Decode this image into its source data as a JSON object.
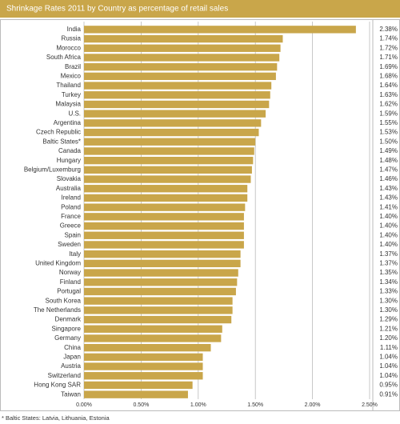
{
  "chart_data": {
    "type": "bar",
    "orientation": "horizontal",
    "title": "Shrinkage Rates 2011 by Country as percentage of retail sales",
    "categories": [
      "India",
      "Russia",
      "Morocco",
      "South Africa",
      "Brazil",
      "Mexico",
      "Thailand",
      "Turkey",
      "Malaysia",
      "U.S.",
      "Argentina",
      "Czech Republic",
      "Baltic States*",
      "Canada",
      "Hungary",
      "Belgium/Luxemburg",
      "Slovakia",
      "Australia",
      "Ireland",
      "Poland",
      "France",
      "Greece",
      "Spain",
      "Sweden",
      "Italy",
      "United Kingdom",
      "Norway",
      "Finland",
      "Portugal",
      "South Korea",
      "The Netherlands",
      "Denmark",
      "Singapore",
      "Germany",
      "China",
      "Japan",
      "Austria",
      "Switzerland",
      "Hong Kong SAR",
      "Taiwan"
    ],
    "values": [
      2.38,
      1.74,
      1.72,
      1.71,
      1.69,
      1.68,
      1.64,
      1.63,
      1.62,
      1.59,
      1.55,
      1.53,
      1.5,
      1.49,
      1.48,
      1.47,
      1.46,
      1.43,
      1.43,
      1.41,
      1.4,
      1.4,
      1.4,
      1.4,
      1.37,
      1.37,
      1.35,
      1.34,
      1.33,
      1.3,
      1.3,
      1.29,
      1.21,
      1.2,
      1.11,
      1.04,
      1.04,
      1.04,
      0.95,
      0.91
    ],
    "value_labels": [
      "2.38%",
      "1.74%",
      "1.72%",
      "1.71%",
      "1.69%",
      "1.68%",
      "1.64%",
      "1.63%",
      "1.62%",
      "1.59%",
      "1.55%",
      "1.53%",
      "1.50%",
      "1.49%",
      "1.48%",
      "1.47%",
      "1.46%",
      "1.43%",
      "1.43%",
      "1.41%",
      "1.40%",
      "1.40%",
      "1.40%",
      "1.40%",
      "1.37%",
      "1.37%",
      "1.35%",
      "1.34%",
      "1.33%",
      "1.30%",
      "1.30%",
      "1.29%",
      "1.21%",
      "1.20%",
      "1.11%",
      "1.04%",
      "1.04%",
      "1.04%",
      "0.95%",
      "0.91%"
    ],
    "color": "#c9a64a",
    "xlim": [
      0,
      2.5
    ],
    "xticks": [
      {
        "value": 0,
        "label": "0.00%"
      },
      {
        "value": 0.5,
        "label": "0.50%"
      },
      {
        "value": 1,
        "label": "1.00%"
      },
      {
        "value": 1.5,
        "label": "1.50%"
      },
      {
        "value": 2,
        "label": "2.00%"
      },
      {
        "value": 2.5,
        "label": "2.50%"
      }
    ],
    "grid": true,
    "footnote": "* Baltic States: Latvia, Lithuania, Estonia"
  }
}
